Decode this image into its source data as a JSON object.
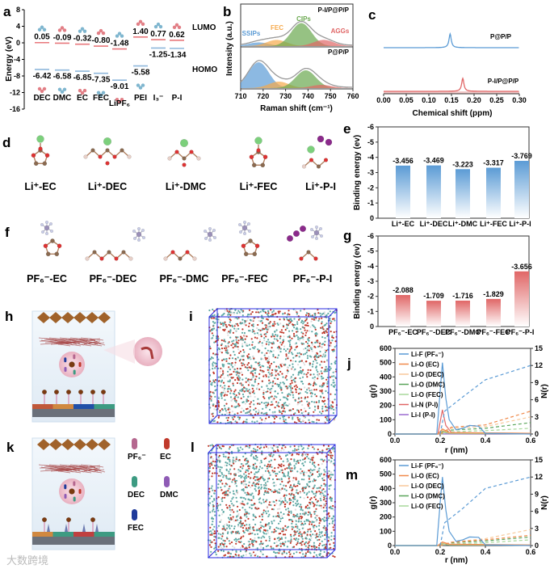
{
  "panel_labels": {
    "a": "a",
    "b": "b",
    "c": "c",
    "d": "d",
    "e": "e",
    "f": "f",
    "g": "g",
    "h": "h",
    "i": "i",
    "j": "j",
    "k": "k",
    "l": "l",
    "m": "m"
  },
  "colors": {
    "lumo": "#e8787c",
    "homo": "#8fb8dc",
    "blue": "#5b9bd5",
    "red": "#e06666",
    "green": "#6aa84f",
    "orange": "#f6a94a"
  },
  "chart_data": [
    {
      "id": "a",
      "type": "energy-level",
      "ylabel": "Energy (eV)",
      "ylim": [
        -16,
        8
      ],
      "yticks": [
        "8",
        "4",
        "0",
        "-4",
        "-8",
        "-12",
        "-16"
      ],
      "categories": [
        "DEC",
        "DMC",
        "EC",
        "FEC",
        "LiPF₆",
        "PEI",
        "I₃⁻",
        "P-I"
      ],
      "lumo": [
        0.05,
        -0.09,
        -0.32,
        -0.8,
        -1.48,
        1.4,
        0.77,
        0.62
      ],
      "lumo_labels": [
        "0.05",
        "-0.09",
        "-0.32",
        "-0.80",
        "-1.48",
        "1.40",
        "0.77",
        "0.62"
      ],
      "homo": [
        -6.42,
        -6.58,
        -6.85,
        -7.35,
        -9.01,
        -5.58,
        -1.25,
        -1.34
      ],
      "homo_labels": [
        "-6.42",
        "-6.58",
        "-6.85",
        "-7.35",
        "-9.01",
        "-5.58",
        "-1.25",
        "-1.34"
      ],
      "legend": {
        "lumo": "LUMO",
        "homo": "HOMO"
      }
    },
    {
      "id": "b",
      "type": "line",
      "xlabel": "Raman  shift (cm⁻¹)",
      "ylabel": "Intensity (a.u.)",
      "xlim": [
        710,
        760
      ],
      "xticks": [
        "710",
        "720",
        "730",
        "740",
        "750",
        "760"
      ],
      "panels": [
        {
          "name": "P-I/P@P/P",
          "peaks": [
            {
              "label": "SSIPs",
              "center": 718,
              "amp": 0.12
            },
            {
              "label": "FEC",
              "center": 726,
              "amp": 0.2
            },
            {
              "label": "CIPs",
              "center": 737,
              "amp": 0.75
            },
            {
              "label": "AGGs",
              "center": 747,
              "amp": 0.2
            }
          ]
        },
        {
          "name": "P@P/P",
          "peaks": [
            {
              "label": "SSIPs",
              "center": 718,
              "amp": 0.8
            },
            {
              "label": "FEC",
              "center": 727,
              "amp": 0.2
            },
            {
              "label": "CIPs",
              "center": 739,
              "amp": 0.55
            },
            {
              "label": "AGGs",
              "center": 746,
              "amp": 0.1
            }
          ]
        }
      ]
    },
    {
      "id": "c",
      "type": "line",
      "xlabel": "Chemical shift (ppm)",
      "xlim": [
        0,
        0.3
      ],
      "xticks": [
        "0.00",
        "0.05",
        "0.10",
        "0.15",
        "0.20",
        "0.25",
        "0.30"
      ],
      "series": [
        {
          "name": "P@P/P",
          "peak": 0.147
        },
        {
          "name": "P-I/P@P/P",
          "peak": 0.175
        }
      ]
    },
    {
      "id": "e",
      "type": "bar",
      "ylabel": "Binding energy (ev)",
      "ylim": [
        0,
        -6
      ],
      "yticks": [
        "0",
        "-1",
        "-2",
        "-3",
        "-4",
        "-5",
        "-6"
      ],
      "categories": [
        "Li⁺-EC",
        "Li⁺-DEC",
        "Li⁺-DMC",
        "Li⁺-FEC",
        "Li⁺-P-I"
      ],
      "values": [
        -3.456,
        -3.469,
        -3.223,
        -3.317,
        -3.769
      ],
      "labels": [
        "-3.456",
        "-3.469",
        "-3.223",
        "-3.317",
        "-3.769"
      ]
    },
    {
      "id": "g",
      "type": "bar",
      "ylabel": "Binding energy (ev)",
      "ylim": [
        0,
        -6
      ],
      "yticks": [
        "0",
        "-1",
        "-2",
        "-3",
        "-4",
        "-5",
        "-6"
      ],
      "categories": [
        "PF₆⁻-EC",
        "PF₆⁻-DEC",
        "PF₆⁻-DMC",
        "PF₆⁻-FEC",
        "PF₆⁻-P-I"
      ],
      "values": [
        -2.088,
        -1.709,
        -1.716,
        -1.829,
        -3.656
      ],
      "labels": [
        "-2.088",
        "-1.709",
        "-1.716",
        "-1.829",
        "-3.656"
      ]
    },
    {
      "id": "j",
      "type": "line",
      "xlabel": "r (nm)",
      "ylabel": "g(r)",
      "y2label": "N(r)",
      "xlim": [
        0,
        0.6
      ],
      "ylim": [
        0,
        600
      ],
      "y2lim": [
        0,
        15
      ],
      "xticks": [
        "0.0",
        "0.2",
        "0.4",
        "0.6"
      ],
      "yticks": [
        "0",
        "100",
        "200",
        "300",
        "400",
        "500",
        "600"
      ],
      "y2ticks": [
        "0",
        "3",
        "6",
        "9",
        "12",
        "15"
      ],
      "series": [
        {
          "name": "Li-F (PF₆⁻)",
          "color": "#5b9bd5",
          "g": [
            [
              0,
              0
            ],
            [
              0.185,
              0
            ],
            [
              0.2,
              300
            ],
            [
              0.21,
              500
            ],
            [
              0.225,
              250
            ],
            [
              0.24,
              100
            ],
            [
              0.27,
              30
            ],
            [
              0.3,
              40
            ],
            [
              0.33,
              60
            ],
            [
              0.37,
              55
            ],
            [
              0.4,
              5
            ],
            [
              0.6,
              0
            ]
          ],
          "n": [
            [
              0.2,
              0
            ],
            [
              0.22,
              4
            ],
            [
              0.3,
              6.5
            ],
            [
              0.4,
              9.5
            ],
            [
              0.6,
              12
            ]
          ]
        },
        {
          "name": "Li-O (EC)",
          "color": "#f08a4b",
          "g": [
            [
              0,
              0
            ],
            [
              0.19,
              0
            ],
            [
              0.21,
              35
            ],
            [
              0.24,
              10
            ],
            [
              0.6,
              5
            ]
          ],
          "n": [
            [
              0.2,
              0
            ],
            [
              0.25,
              1.2
            ],
            [
              0.4,
              1.6
            ],
            [
              0.6,
              4
            ]
          ]
        },
        {
          "name": "Li-O (DEC)",
          "color": "#f8c99a",
          "g": [
            [
              0,
              0
            ],
            [
              0.19,
              0
            ],
            [
              0.21,
              25
            ],
            [
              0.24,
              8
            ],
            [
              0.6,
              4
            ]
          ],
          "n": [
            [
              0.2,
              0
            ],
            [
              0.25,
              1
            ],
            [
              0.4,
              1.3
            ],
            [
              0.6,
              3
            ]
          ]
        },
        {
          "name": "Li-O (DMC)",
          "color": "#5aa55a",
          "g": [
            [
              0,
              0
            ],
            [
              0.19,
              0
            ],
            [
              0.21,
              20
            ],
            [
              0.24,
              6
            ],
            [
              0.6,
              3
            ]
          ],
          "n": [
            [
              0.2,
              0
            ],
            [
              0.25,
              0.7
            ],
            [
              0.4,
              1
            ],
            [
              0.6,
              2
            ]
          ]
        },
        {
          "name": "Li-O (FEC)",
          "color": "#a8d89a",
          "g": [
            [
              0,
              0
            ],
            [
              0.19,
              0
            ],
            [
              0.21,
              15
            ],
            [
              0.24,
              5
            ],
            [
              0.6,
              2
            ]
          ],
          "n": [
            [
              0.2,
              0
            ],
            [
              0.25,
              0.4
            ],
            [
              0.4,
              0.6
            ],
            [
              0.6,
              1
            ]
          ]
        },
        {
          "name": "Li-N (P-I)",
          "color": "#e06666",
          "g": [
            [
              0,
              0
            ],
            [
              0.19,
              0
            ],
            [
              0.21,
              170
            ],
            [
              0.225,
              60
            ],
            [
              0.25,
              10
            ],
            [
              0.6,
              3
            ]
          ],
          "n": []
        },
        {
          "name": "Li-I (P-I)",
          "color": "#9b6ad0",
          "g": [
            [
              0,
              0
            ],
            [
              0.6,
              2
            ]
          ],
          "n": []
        }
      ]
    },
    {
      "id": "m",
      "type": "line",
      "xlabel": "r (nm)",
      "ylabel": "g(r)",
      "y2label": "N(r)",
      "xlim": [
        0,
        0.6
      ],
      "ylim": [
        0,
        600
      ],
      "y2lim": [
        0,
        15
      ],
      "xticks": [
        "0.0",
        "0.2",
        "0.4",
        "0.6"
      ],
      "yticks": [
        "0",
        "100",
        "200",
        "300",
        "400",
        "500",
        "600"
      ],
      "y2ticks": [
        "0",
        "3",
        "6",
        "9",
        "12",
        "15"
      ],
      "series": [
        {
          "name": "Li-F (PF₆⁻)",
          "color": "#5b9bd5",
          "g": [
            [
              0,
              0
            ],
            [
              0.185,
              0
            ],
            [
              0.2,
              300
            ],
            [
              0.21,
              480
            ],
            [
              0.225,
              250
            ],
            [
              0.24,
              100
            ],
            [
              0.27,
              30
            ],
            [
              0.3,
              40
            ],
            [
              0.33,
              60
            ],
            [
              0.37,
              58
            ],
            [
              0.4,
              5
            ],
            [
              0.6,
              0
            ]
          ],
          "n": [
            [
              0.2,
              0
            ],
            [
              0.22,
              4
            ],
            [
              0.3,
              6.5
            ],
            [
              0.4,
              10
            ],
            [
              0.6,
              12
            ]
          ]
        },
        {
          "name": "Li-O (EC)",
          "color": "#f08a4b",
          "g": [
            [
              0,
              0
            ],
            [
              0.19,
              0
            ],
            [
              0.21,
              25
            ],
            [
              0.24,
              10
            ],
            [
              0.6,
              4
            ]
          ],
          "n": [
            [
              0.2,
              0
            ],
            [
              0.25,
              0.6
            ],
            [
              0.4,
              1
            ],
            [
              0.6,
              1.8
            ]
          ]
        },
        {
          "name": "Li-O (DEC)",
          "color": "#f8c99a",
          "g": [
            [
              0,
              0
            ],
            [
              0.19,
              0
            ],
            [
              0.21,
              20
            ],
            [
              0.24,
              8
            ],
            [
              0.6,
              3
            ]
          ],
          "n": [
            [
              0.2,
              0
            ],
            [
              0.25,
              0.6
            ],
            [
              0.4,
              1.2
            ],
            [
              0.6,
              2.8
            ]
          ]
        },
        {
          "name": "Li-O (DMC)",
          "color": "#5aa55a",
          "g": [
            [
              0,
              0
            ],
            [
              0.19,
              0
            ],
            [
              0.21,
              18
            ],
            [
              0.24,
              6
            ],
            [
              0.6,
              3
            ]
          ],
          "n": [
            [
              0.2,
              0
            ],
            [
              0.25,
              0.5
            ],
            [
              0.4,
              0.8
            ],
            [
              0.6,
              1.5
            ]
          ]
        },
        {
          "name": "Li-O (FEC)",
          "color": "#a8d89a",
          "g": [
            [
              0,
              0
            ],
            [
              0.19,
              0
            ],
            [
              0.21,
              12
            ],
            [
              0.24,
              5
            ],
            [
              0.6,
              2
            ]
          ],
          "n": [
            [
              0.2,
              0
            ],
            [
              0.25,
              0.3
            ],
            [
              0.4,
              0.5
            ],
            [
              0.6,
              1
            ]
          ]
        }
      ]
    }
  ],
  "complexes_d": [
    "Li⁺-EC",
    "Li⁺-DEC",
    "Li⁺-DMC",
    "Li⁺-FEC",
    "Li⁺-P-I"
  ],
  "complexes_f": [
    "PF₆⁻-EC",
    "PF₆⁻-DEC",
    "PF₆⁻-DMC",
    "PF₆⁻-FEC",
    "PF₆⁻-P-I"
  ],
  "legend_k": [
    {
      "label": "PF₆⁻",
      "color": "#b5678f"
    },
    {
      "label": "EC",
      "color": "#c0392b"
    },
    {
      "label": "DEC",
      "color": "#3d9b82"
    },
    {
      "label": "DMC",
      "color": "#8e5bb5"
    },
    {
      "label": "FEC",
      "color": "#1f3b9b"
    }
  ],
  "watermark": "大数跨境"
}
